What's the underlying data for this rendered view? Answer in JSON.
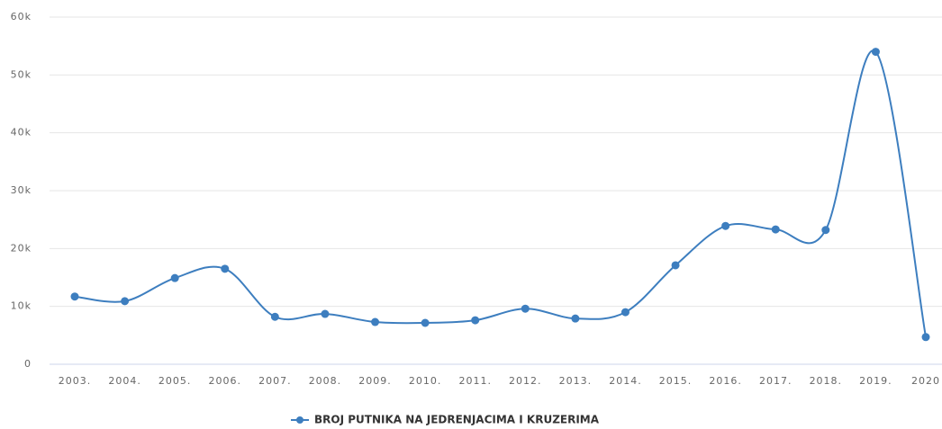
{
  "chart_data": {
    "type": "line",
    "categories": [
      "2003.",
      "2004.",
      "2005.",
      "2006.",
      "2007.",
      "2008.",
      "2009.",
      "2010.",
      "2011.",
      "2012.",
      "2013.",
      "2014.",
      "2015.",
      "2016.",
      "2017.",
      "2018.",
      "2019.",
      "2020"
    ],
    "series": [
      {
        "name": "BROJ PUTNIKA NA JEDRENJACIMA I KRUZERIMA",
        "color": "#3d7ebf",
        "values": [
          11700,
          10900,
          14900,
          16500,
          8200,
          8700,
          7300,
          7150,
          7600,
          9600,
          7900,
          9000,
          17100,
          23900,
          23300,
          23200,
          54000,
          4700
        ]
      }
    ],
    "ylim": [
      0,
      60000
    ],
    "yticks": [
      0,
      {
        "value": 10000,
        "label": "10k"
      },
      {
        "value": 20000,
        "label": "20k"
      },
      {
        "value": 30000,
        "label": "30k"
      },
      {
        "value": 40000,
        "label": "40k"
      },
      {
        "value": 50000,
        "label": "50k"
      },
      {
        "value": 60000,
        "label": "60k"
      }
    ],
    "grid": true,
    "legend": "bottom"
  }
}
